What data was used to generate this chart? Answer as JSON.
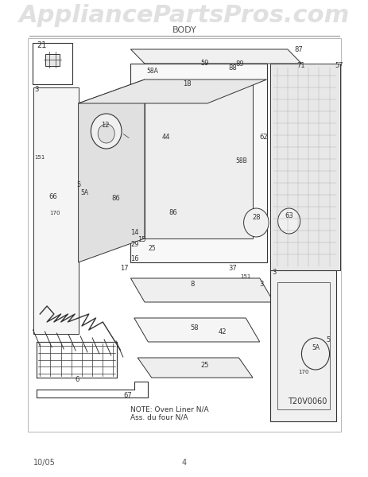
{
  "title_watermark": "AppliancePartsPros.com",
  "subtitle": "BODY",
  "footer_left": "10/05",
  "footer_center": "4",
  "note_text": "NOTE: Oven Liner N/A\nAss. du four N/A",
  "diagram_id": "T20V0060",
  "bg_color": "#ffffff",
  "watermark_color": "#cccccc",
  "line_color": "#333333",
  "border_color": "#999999"
}
